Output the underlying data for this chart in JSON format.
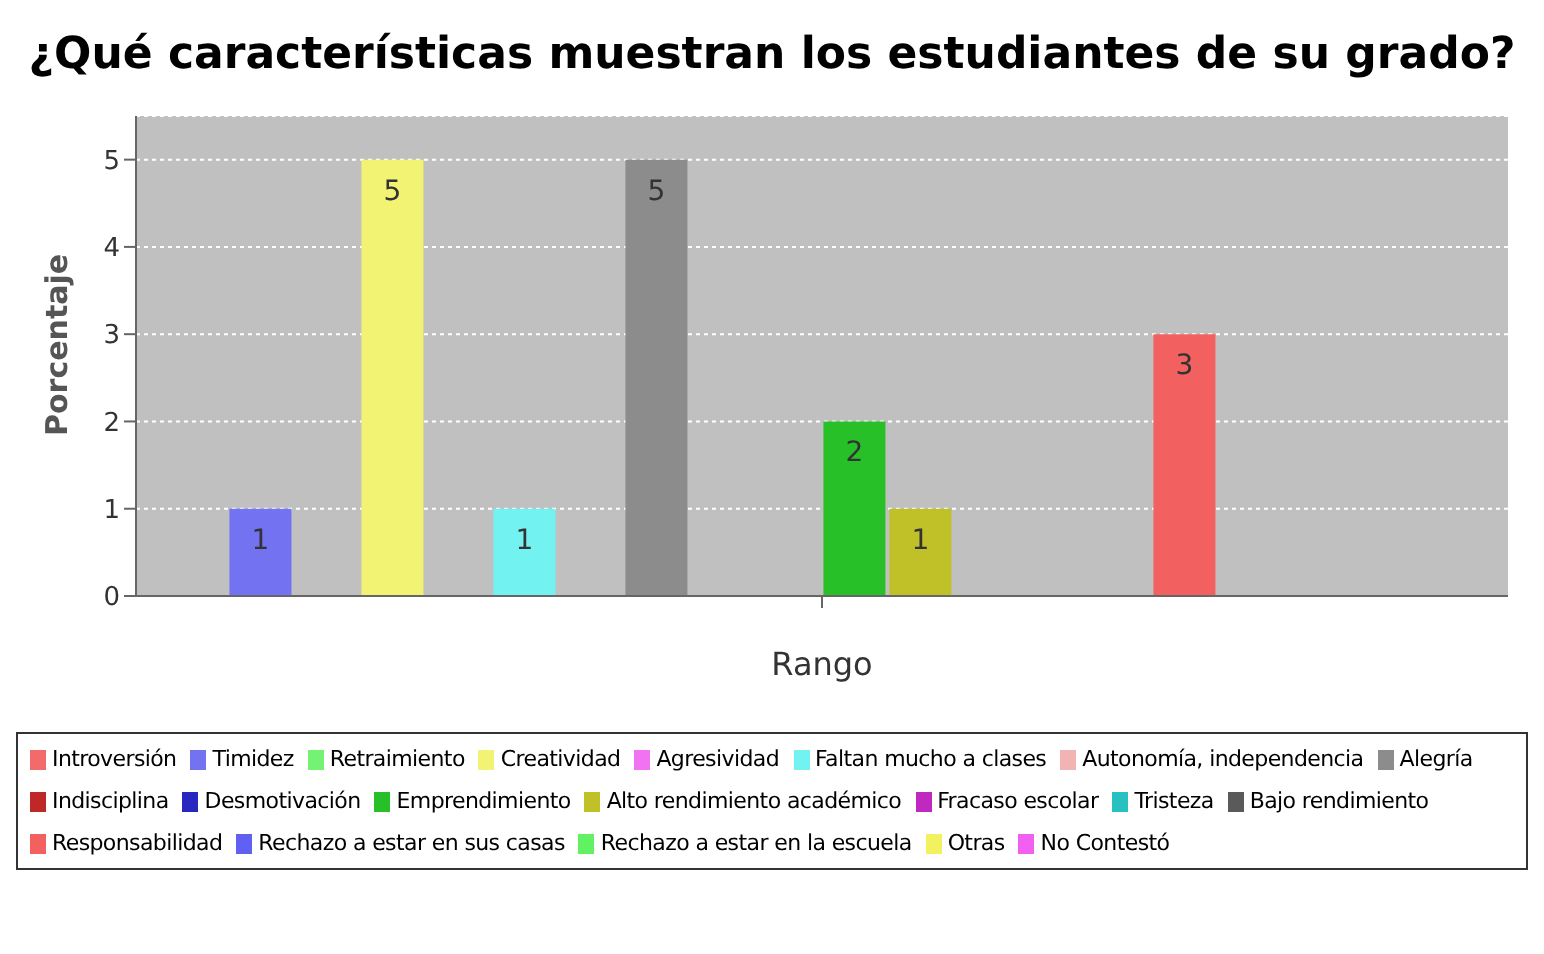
{
  "chart_data": {
    "type": "bar",
    "title": "¿Qué características muestran los estudiantes de su grado?",
    "ylabel": "Porcentaje",
    "categories": [
      "Rango"
    ],
    "ylim": [
      0,
      5.5
    ],
    "yticks": [
      0,
      1,
      2,
      3,
      4,
      5
    ],
    "grid": "y",
    "legend": "bottom",
    "series": [
      {
        "name": "Introversión",
        "color": "#f26a6a",
        "values": [
          0
        ],
        "value_labels": [
          null
        ]
      },
      {
        "name": "Timidez",
        "color": "#7373f2",
        "values": [
          1
        ],
        "value_labels": [
          "1"
        ]
      },
      {
        "name": "Retraimiento",
        "color": "#73f273",
        "values": [
          0
        ],
        "value_labels": [
          null
        ]
      },
      {
        "name": "Creatividad",
        "color": "#f2f273",
        "values": [
          5
        ],
        "value_labels": [
          "5"
        ]
      },
      {
        "name": "Agresividad",
        "color": "#f273f2",
        "values": [
          0
        ],
        "value_labels": [
          null
        ]
      },
      {
        "name": "Faltan mucho a clases",
        "color": "#73f2f2",
        "values": [
          1
        ],
        "value_labels": [
          "1"
        ]
      },
      {
        "name": "Autonomía, independencia",
        "color": "#f2b3b3",
        "values": [
          0
        ],
        "value_labels": [
          null
        ]
      },
      {
        "name": "Alegría",
        "color": "#8c8c8c",
        "values": [
          5
        ],
        "value_labels": [
          "5"
        ]
      },
      {
        "name": "Indisciplina",
        "color": "#c02828",
        "values": [
          0
        ],
        "value_labels": [
          null
        ]
      },
      {
        "name": "Desmotivación",
        "color": "#2828c0",
        "values": [
          0
        ],
        "value_labels": [
          null
        ]
      },
      {
        "name": "Emprendimiento",
        "color": "#28c028",
        "values": [
          2
        ],
        "value_labels": [
          "2"
        ]
      },
      {
        "name": "Alto rendimiento académico",
        "color": "#c0c028",
        "values": [
          1
        ],
        "value_labels": [
          "1"
        ]
      },
      {
        "name": "Fracaso escolar",
        "color": "#c028c0",
        "values": [
          0
        ],
        "value_labels": [
          null
        ]
      },
      {
        "name": "Tristeza",
        "color": "#28c0c0",
        "values": [
          0
        ],
        "value_labels": [
          null
        ]
      },
      {
        "name": "Bajo rendimiento",
        "color": "#5a5a5a",
        "values": [
          0
        ],
        "value_labels": [
          null
        ]
      },
      {
        "name": "Responsabilidad",
        "color": "#f26060",
        "values": [
          3
        ],
        "value_labels": [
          "3"
        ]
      },
      {
        "name": "Rechazo a estar en sus casas",
        "color": "#6060f2",
        "values": [
          0
        ],
        "value_labels": [
          null
        ]
      },
      {
        "name": "Rechazo a estar en la escuela",
        "color": "#60f260",
        "values": [
          0
        ],
        "value_labels": [
          null
        ]
      },
      {
        "name": "Otras",
        "color": "#f2f260",
        "values": [
          0
        ],
        "value_labels": [
          null
        ]
      },
      {
        "name": "No Contestó",
        "color": "#f260f2",
        "values": [
          0
        ],
        "value_labels": [
          null
        ]
      }
    ]
  }
}
